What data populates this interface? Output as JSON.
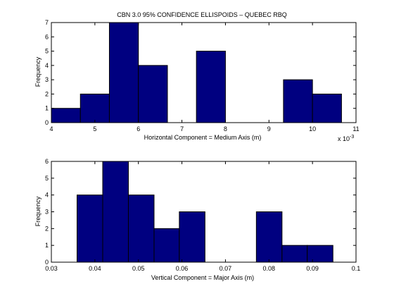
{
  "chart_data": [
    {
      "type": "bar",
      "title": "CBN 3.0 95% CONFIDENCE ELLISPOIDS – QUEBEC RBQ",
      "xlabel": "Horizontal Component = Medium Axis (m)",
      "ylabel": "Frequency",
      "x_exponent_label": "x 10",
      "x_exponent": "-3",
      "xlim": [
        4,
        11
      ],
      "ylim": [
        0,
        7
      ],
      "xticks": [
        4,
        5,
        6,
        7,
        8,
        9,
        10,
        11
      ],
      "yticks": [
        0,
        1,
        2,
        3,
        4,
        5,
        6,
        7
      ],
      "bins": [
        {
          "x0": 4.0,
          "x1": 4.667,
          "count": 1
        },
        {
          "x0": 4.667,
          "x1": 5.333,
          "count": 2
        },
        {
          "x0": 5.333,
          "x1": 6.0,
          "count": 7
        },
        {
          "x0": 6.0,
          "x1": 6.667,
          "count": 4
        },
        {
          "x0": 6.667,
          "x1": 7.333,
          "count": 0
        },
        {
          "x0": 7.333,
          "x1": 8.0,
          "count": 5
        },
        {
          "x0": 8.0,
          "x1": 8.667,
          "count": 0
        },
        {
          "x0": 8.667,
          "x1": 9.333,
          "count": 0
        },
        {
          "x0": 9.333,
          "x1": 10.0,
          "count": 3
        },
        {
          "x0": 10.0,
          "x1": 10.667,
          "count": 2
        }
      ],
      "bar_color": "#000080",
      "grid": false
    },
    {
      "type": "bar",
      "title": "",
      "xlabel": "Vertical Component = Major Axis (m)",
      "ylabel": "Frequency",
      "xlim": [
        0.03,
        0.1
      ],
      "ylim": [
        0,
        6
      ],
      "xticks": [
        0.03,
        0.04,
        0.05,
        0.06,
        0.07,
        0.08,
        0.09,
        0.1
      ],
      "xtick_labels": [
        "0.03",
        "0.04",
        "0.05",
        "0.06",
        "0.07",
        "0.08",
        "0.09",
        "0.1"
      ],
      "yticks": [
        0,
        1,
        2,
        3,
        4,
        5,
        6
      ],
      "bins": [
        {
          "x0": 0.0359,
          "x1": 0.0418,
          "count": 4
        },
        {
          "x0": 0.0418,
          "x1": 0.0477,
          "count": 6
        },
        {
          "x0": 0.0477,
          "x1": 0.0536,
          "count": 4
        },
        {
          "x0": 0.0536,
          "x1": 0.0594,
          "count": 2
        },
        {
          "x0": 0.0594,
          "x1": 0.0653,
          "count": 3
        },
        {
          "x0": 0.0653,
          "x1": 0.0712,
          "count": 0
        },
        {
          "x0": 0.0712,
          "x1": 0.0771,
          "count": 0
        },
        {
          "x0": 0.0771,
          "x1": 0.083,
          "count": 3
        },
        {
          "x0": 0.083,
          "x1": 0.0888,
          "count": 1
        },
        {
          "x0": 0.0888,
          "x1": 0.0947,
          "count": 1
        }
      ],
      "bar_color": "#000080",
      "grid": false
    }
  ]
}
